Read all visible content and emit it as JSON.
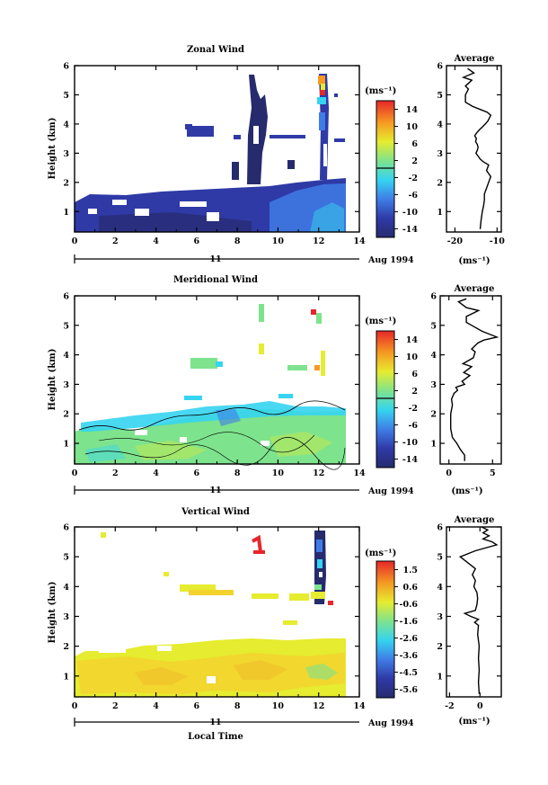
{
  "figure": {
    "date_label": "Aug 1994",
    "date_day": "11",
    "xlabel": "Local Time",
    "ylabel": "Height (km)",
    "avg_title": "Average",
    "avg_unit": "(ms⁻¹)",
    "cbar_unit": "(ms⁻¹)"
  },
  "chart_data": [
    {
      "type": "heatmap",
      "title": "Zonal Wind",
      "xlabel": "",
      "ylabel": "Height (km)",
      "xlim": [
        0,
        14
      ],
      "ylim": [
        0.3,
        6
      ],
      "xticks": [
        "0",
        "2",
        "4",
        "6",
        "8",
        "10",
        "12",
        "14"
      ],
      "yticks": [
        "1",
        "2",
        "3",
        "4",
        "5",
        "6"
      ],
      "colorbar": {
        "ticks": [
          "14",
          "10",
          "6",
          "2",
          "-2",
          "-6",
          "-10",
          "-14"
        ],
        "range": [
          -16,
          16
        ]
      },
      "approx_values": {
        "bulk_below_2km": -12,
        "layer_near_4km": -10,
        "column_near_13h_above_2km": -8,
        "top_spot_near_5_7km": 12
      }
    },
    {
      "type": "line",
      "title": "Average",
      "xlabel": "(ms⁻¹)",
      "ylabel": "",
      "xticks": [
        "-20",
        "-10"
      ],
      "xlim": [
        -22,
        -9
      ],
      "ylim": [
        0.3,
        6
      ],
      "yticks": [
        "1",
        "2",
        "3",
        "4",
        "5",
        "6"
      ],
      "x": [
        -14,
        -13.8,
        -13.5,
        -13.2,
        -13,
        -13,
        -12.5,
        -12,
        -11.5,
        -12.5,
        -12,
        -13.2,
        -14,
        -14.5,
        -15,
        -14.7,
        -14.5,
        -14.7,
        -15.1,
        -14.9,
        -15.3,
        -14.8,
        -14.2,
        -13.5,
        -12.8,
        -12.2,
        -11.5,
        -12.3,
        -14,
        -15.8,
        -17.5,
        -17.5,
        -16.8,
        -17.5,
        -16,
        -18,
        -15.5,
        -17
      ],
      "y": [
        0.4,
        0.7,
        1.0,
        1.2,
        1.4,
        1.6,
        1.8,
        2.0,
        2.2,
        2.4,
        2.6,
        2.7,
        2.8,
        2.9,
        3.0,
        3.1,
        3.2,
        3.3,
        3.4,
        3.5,
        3.6,
        3.7,
        3.8,
        3.9,
        4.0,
        4.1,
        4.3,
        4.4,
        4.5,
        4.6,
        4.75,
        5.0,
        5.2,
        5.3,
        5.5,
        5.6,
        5.75,
        5.9
      ]
    },
    {
      "type": "heatmap",
      "title": "Meridional Wind",
      "xlabel": "",
      "ylabel": "Height (km)",
      "xlim": [
        0,
        14
      ],
      "ylim": [
        0.3,
        6
      ],
      "xticks": [
        "0",
        "2",
        "4",
        "6",
        "8",
        "10",
        "12",
        "14"
      ],
      "yticks": [
        "1",
        "2",
        "3",
        "4",
        "5",
        "6"
      ],
      "colorbar": {
        "ticks": [
          "14",
          "10",
          "6",
          "2",
          "-2",
          "-6",
          "-10",
          "-14"
        ],
        "range": [
          -16,
          16
        ]
      },
      "approx_values": {
        "bulk_below_2km": 0,
        "band_near_2km": -3,
        "patches_near_4km": 0,
        "top_spots_near_5km": 10
      }
    },
    {
      "type": "line",
      "title": "Average",
      "xlabel": "(ms⁻¹)",
      "ylabel": "",
      "xticks": [
        "0",
        "5"
      ],
      "xlim": [
        -1,
        6
      ],
      "ylim": [
        0.3,
        6
      ],
      "yticks": [
        "1",
        "2",
        "3",
        "4",
        "5",
        "6"
      ],
      "x": [
        1.8,
        1.8,
        1.3,
        0.9,
        0.4,
        0.2,
        0.2,
        0.2,
        0.4,
        0.3,
        0.6,
        1.0,
        0.8,
        1.8,
        1.5,
        2.4,
        1.7,
        2.6,
        1.6,
        2.8,
        3.0,
        2.6,
        3.3,
        4.0,
        5.5,
        3.8,
        2.6,
        2.0,
        2.0,
        3.4,
        2.0,
        1.1,
        2.0
      ],
      "y": [
        0.4,
        0.6,
        0.8,
        1.0,
        1.2,
        1.5,
        1.8,
        2.0,
        2.3,
        2.5,
        2.7,
        2.8,
        2.9,
        3.0,
        3.1,
        3.3,
        3.4,
        3.6,
        3.7,
        3.9,
        4.1,
        4.2,
        4.4,
        4.5,
        4.6,
        4.8,
        5.0,
        5.1,
        5.3,
        5.5,
        5.6,
        5.8,
        5.9
      ]
    },
    {
      "type": "heatmap",
      "title": "Vertical Wind",
      "xlabel": "Local Time",
      "ylabel": "Height (km)",
      "xlim": [
        0,
        14
      ],
      "ylim": [
        0.3,
        6
      ],
      "xticks": [
        "0",
        "2",
        "4",
        "6",
        "8",
        "10",
        "12",
        "14"
      ],
      "yticks": [
        "1",
        "2",
        "3",
        "4",
        "5",
        "6"
      ],
      "colorbar": {
        "ticks": [
          "1.5",
          "0.6",
          "-0.6",
          "-1.6",
          "-2.6",
          "-3.6",
          "-4.5",
          "-5.6"
        ],
        "range": [
          -6,
          2
        ]
      },
      "approx_values": {
        "bulk_below_2_3km": 0.3,
        "band_near_3_5km": 0.5,
        "column_near_12_5h": -4.5,
        "top_spot_near_5_5km": 1.5
      }
    },
    {
      "type": "line",
      "title": "Average",
      "xlabel": "(ms⁻¹)",
      "ylabel": "",
      "xticks": [
        "-2",
        "0"
      ],
      "xlim": [
        -2.2,
        1.4
      ],
      "ylim": [
        0.3,
        6
      ],
      "yticks": [
        "1",
        "2",
        "3",
        "4",
        "5",
        "6"
      ],
      "x": [
        -0.05,
        -0.1,
        -0.05,
        -0.1,
        -0.05,
        -0.15,
        -0.1,
        -0.35,
        -0.1,
        -0.6,
        -1.0,
        -0.3,
        -0.2,
        -0.15,
        -0.2,
        -0.4,
        -0.3,
        -0.5,
        -0.3,
        -0.8,
        -1.3,
        -0.3,
        1.1,
        0.8,
        0.2,
        0.6,
        0.2,
        0.5,
        0.1
      ],
      "y": [
        0.4,
        0.8,
        1.2,
        1.6,
        2.0,
        2.4,
        2.7,
        2.8,
        2.9,
        3.0,
        3.1,
        3.2,
        3.4,
        3.6,
        3.8,
        4.0,
        4.2,
        4.4,
        4.6,
        4.8,
        5.0,
        5.2,
        5.4,
        5.5,
        5.6,
        5.7,
        5.8,
        5.9,
        6.0
      ]
    }
  ]
}
